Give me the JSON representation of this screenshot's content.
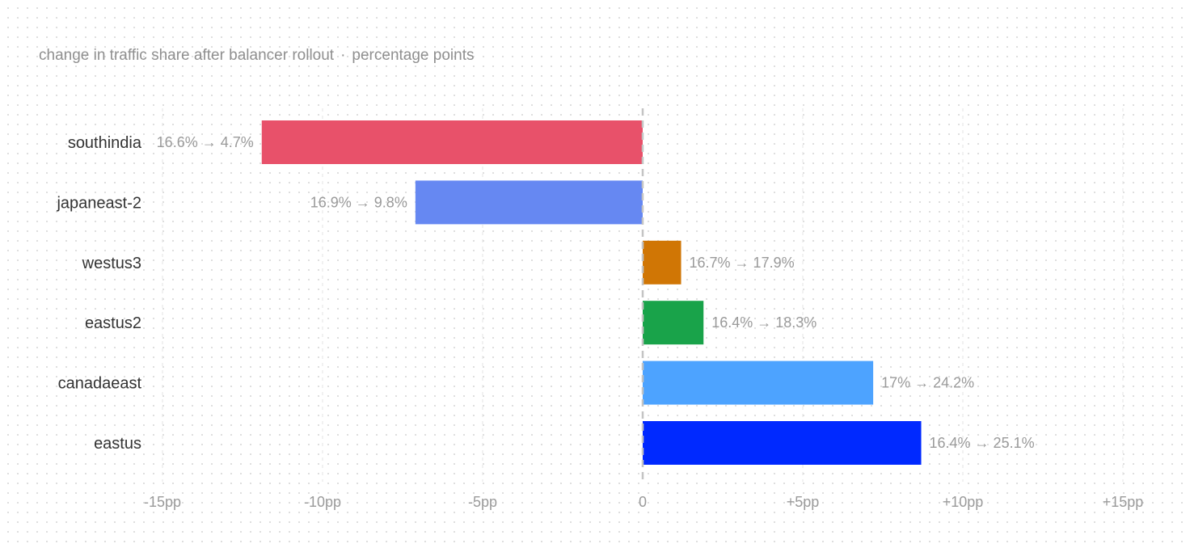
{
  "subtitle": {
    "main": "change in traffic share after balancer rollout",
    "separator": "·",
    "unit": "percentage points"
  },
  "chart_data": {
    "type": "bar",
    "orientation": "horizontal",
    "categories": [
      "southindia",
      "japaneast-2",
      "westus3",
      "eastus2",
      "canadaeast",
      "eastus"
    ],
    "values": [
      -11.9,
      -7.1,
      1.2,
      1.9,
      7.2,
      8.7
    ],
    "before": [
      16.6,
      16.9,
      16.7,
      16.4,
      17,
      16.4
    ],
    "after": [
      4.7,
      9.8,
      17.9,
      18.3,
      24.2,
      25.1
    ],
    "value_labels": [
      "16.6% → 4.7%",
      "16.9% → 9.8%",
      "16.7% → 17.9%",
      "16.4% → 18.3%",
      "17% → 24.2%",
      "16.4% → 25.1%"
    ],
    "colors": [
      "#e8516a",
      "#6688f2",
      "#d07605",
      "#19a34a",
      "#4da3ff",
      "#0029ff"
    ],
    "xlim": [
      -15,
      15
    ],
    "xticks": [
      -15,
      -10,
      -5,
      0,
      5,
      10,
      15
    ],
    "xtick_labels": [
      "-15pp",
      "-10pp",
      "-5pp",
      "0",
      "+5pp",
      "+10pp",
      "+15pp"
    ],
    "zero_line": "dashed",
    "grid": "vertical-dashed"
  }
}
